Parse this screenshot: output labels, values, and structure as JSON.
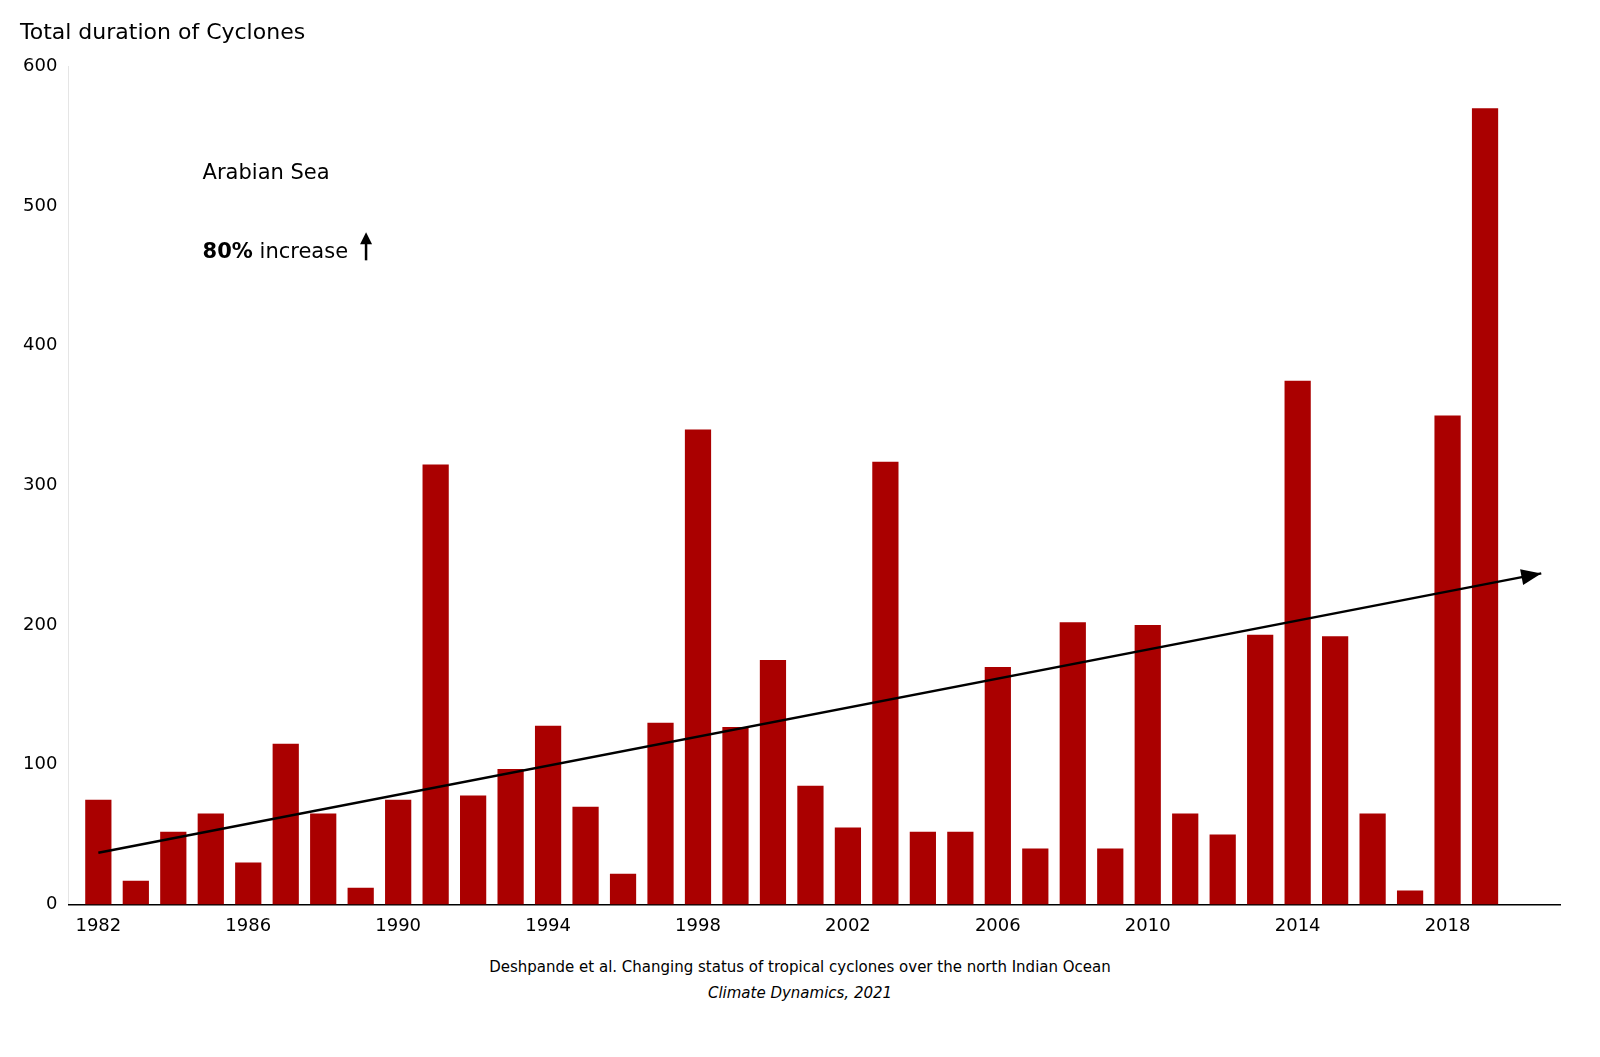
{
  "chart_data": {
    "type": "bar",
    "title": "Total duration of Cyclones",
    "x": [
      1982,
      1983,
      1984,
      1985,
      1986,
      1987,
      1988,
      1989,
      1990,
      1991,
      1992,
      1993,
      1994,
      1995,
      1996,
      1997,
      1998,
      1999,
      2000,
      2001,
      2002,
      2003,
      2004,
      2005,
      2006,
      2007,
      2008,
      2009,
      2010,
      2011,
      2012,
      2013,
      2014,
      2015,
      2016,
      2017,
      2018,
      2019
    ],
    "values": [
      75,
      17,
      52,
      65,
      30,
      115,
      65,
      12,
      75,
      315,
      78,
      97,
      128,
      70,
      22,
      130,
      340,
      127,
      175,
      85,
      55,
      317,
      52,
      52,
      170,
      40,
      202,
      40,
      200,
      65,
      50,
      193,
      375,
      192,
      65,
      10,
      350,
      570
    ],
    "color": "#AA0000",
    "trend": {
      "x": [
        1982,
        2020.5
      ],
      "values": [
        37,
        237
      ],
      "color": "#000000"
    },
    "xlim": [
      1981.2,
      2021.0
    ],
    "xticks": [
      1982,
      1986,
      1990,
      1994,
      1998,
      2002,
      2006,
      2010,
      2014,
      2018
    ],
    "ylim": [
      0,
      600
    ],
    "yticks": [
      0,
      100,
      200,
      300,
      400,
      500,
      600
    ],
    "grid": false,
    "legend": "none",
    "annotations": [
      "Arabian Sea",
      "80%",
      "increase"
    ],
    "source": [
      "Deshpande et al. Changing status of tropical cyclones over the north Indian Ocean",
      "Climate Dynamics, 2021"
    ]
  }
}
